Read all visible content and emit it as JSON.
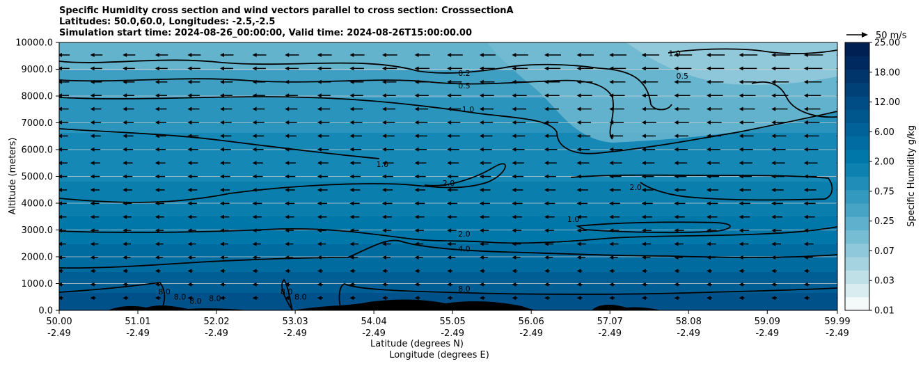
{
  "chart_data": {
    "type": "contour",
    "title_lines": [
      "Specific Humidity cross section and wind vectors parallel to cross section: CrosssectionA",
      "Latitudes: 50.0,60.0, Longitudes: -2.5,-2.5",
      "Simulation start time: 2024-08-26_00:00:00, Valid time: 2024-08-26T15:00:00.00"
    ],
    "ylabel": "Altitude (meters)",
    "xlabel_1": "Latitude (degrees N)",
    "xlabel_2": "Longitude (degrees E)",
    "ylim": [
      0,
      10000
    ],
    "xlim": [
      50.0,
      59.99
    ],
    "yticks": [
      "0.0",
      "1000.0",
      "2000.0",
      "3000.0",
      "4000.0",
      "5000.0",
      "6000.0",
      "7000.0",
      "8000.0",
      "9000.0",
      "10000.0"
    ],
    "xticks": [
      {
        "lat": "50.00",
        "lon": "-2.49"
      },
      {
        "lat": "51.01",
        "lon": "-2.49"
      },
      {
        "lat": "52.02",
        "lon": "-2.49"
      },
      {
        "lat": "53.03",
        "lon": "-2.49"
      },
      {
        "lat": "54.04",
        "lon": "-2.49"
      },
      {
        "lat": "55.05",
        "lon": "-2.49"
      },
      {
        "lat": "56.06",
        "lon": "-2.49"
      },
      {
        "lat": "57.07",
        "lon": "-2.49"
      },
      {
        "lat": "58.08",
        "lon": "-2.49"
      },
      {
        "lat": "59.09",
        "lon": "-2.49"
      },
      {
        "lat": "59.99",
        "lon": "-2.49"
      }
    ],
    "colorbar": {
      "label": "Specific Humidity g/kg",
      "tick_labels": [
        "0.01",
        "0.03",
        "0.07",
        "0.25",
        "0.75",
        "2.00",
        "6.00",
        "12.00",
        "18.00",
        "25.00"
      ],
      "colors": [
        "#f4f9fa",
        "#d9ecf0",
        "#c0e0e8",
        "#a6d3e0",
        "#8ec8da",
        "#76bcd3",
        "#5fb0cc",
        "#48a4c5",
        "#3399bf",
        "#1f8db8",
        "#0d82b1",
        "#0077a9",
        "#006ca1",
        "#006298",
        "#00578e",
        "#004c84",
        "#004178",
        "#00356b",
        "#002a5f",
        "#001f52"
      ]
    },
    "quiver_key": {
      "label": "50 m/s"
    },
    "contour_labels": [
      {
        "text": "0.2",
        "x": 55.2,
        "y": 8750
      },
      {
        "text": "0.5",
        "x": 55.2,
        "y": 8280
      },
      {
        "text": "1.0",
        "x": 55.25,
        "y": 7400
      },
      {
        "text": "1.0",
        "x": 54.15,
        "y": 5350
      },
      {
        "text": "2.0",
        "x": 55.0,
        "y": 4650
      },
      {
        "text": "2.0",
        "x": 55.2,
        "y": 2750
      },
      {
        "text": "4.0",
        "x": 55.2,
        "y": 2200
      },
      {
        "text": "8.0",
        "x": 55.2,
        "y": 700
      },
      {
        "text": "2.0",
        "x": 57.4,
        "y": 4500
      },
      {
        "text": "1.0",
        "x": 56.6,
        "y": 3300
      },
      {
        "text": "0.5",
        "x": 58.0,
        "y": 8650
      },
      {
        "text": "1.0",
        "x": 57.9,
        "y": 9500
      },
      {
        "text": "8.0",
        "x": 51.35,
        "y": 600
      },
      {
        "text": "8.0",
        "x": 51.55,
        "y": 400
      },
      {
        "text": "8.0",
        "x": 51.75,
        "y": 250
      },
      {
        "text": "8.0",
        "x": 52.0,
        "y": 350
      },
      {
        "text": "8.0",
        "x": 52.92,
        "y": 600
      },
      {
        "text": "8.0",
        "x": 53.1,
        "y": 400
      }
    ]
  }
}
